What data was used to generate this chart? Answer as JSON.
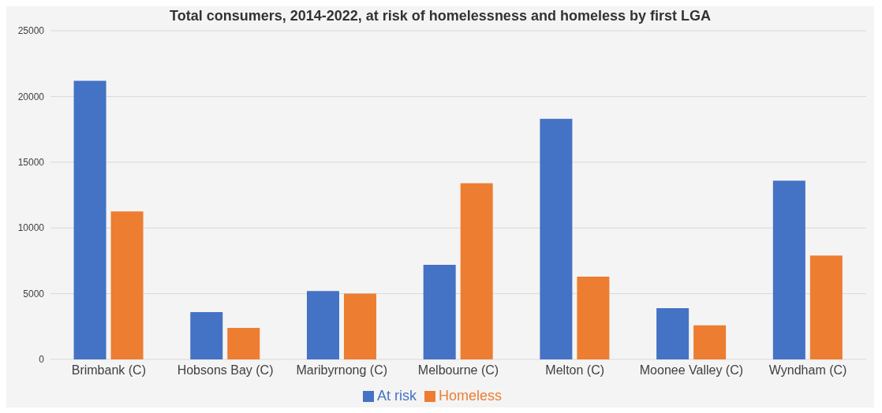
{
  "chart_data": {
    "type": "bar",
    "title": "Total consumers, 2014-2022, at risk of homelessness and homeless by first LGA",
    "categories": [
      "Brimbank (C)",
      "Hobsons Bay (C)",
      "Maribyrnong (C)",
      "Melbourne (C)",
      "Melton (C)",
      "Moonee Valley (C)",
      "Wyndham (C)"
    ],
    "series": [
      {
        "name": "At risk",
        "color": "#4472c4",
        "values": [
          21200,
          3600,
          5200,
          7200,
          18300,
          3900,
          13600
        ]
      },
      {
        "name": "Homeless",
        "color": "#ed7d31",
        "values": [
          11250,
          2400,
          5000,
          13400,
          6300,
          2600,
          7900
        ]
      }
    ],
    "ylim": [
      0,
      25000
    ],
    "yticks": [
      0,
      5000,
      10000,
      15000,
      20000,
      25000
    ],
    "grid": "y",
    "legend": "bottom"
  }
}
